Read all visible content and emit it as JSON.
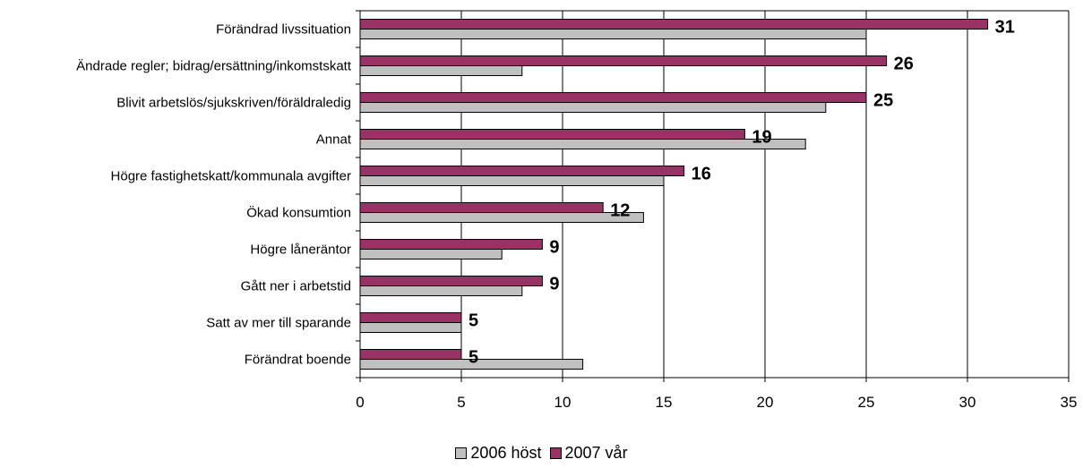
{
  "chart_data": {
    "type": "bar",
    "orientation": "horizontal",
    "categories": [
      "Förändrad livssituation",
      "Ändrade regler; bidrag/ersättning/inkomstskatt",
      "Blivit arbetslös/sjukskriven/föräldraledig",
      "Annat",
      "Högre fastighetskatt/kommunala avgifter",
      "Ökad konsumtion",
      "Högre låneräntor",
      "Gått ner i arbetstid",
      "Satt av mer till sparande",
      "Förändrat boende"
    ],
    "series": [
      {
        "name": "2007 vår",
        "color": "#993366",
        "values": [
          31,
          26,
          25,
          19,
          16,
          12,
          9,
          9,
          5,
          5
        ],
        "data_labels": [
          "31",
          "26",
          "25",
          "19",
          "16",
          "12",
          "9",
          "9",
          "5",
          "5"
        ]
      },
      {
        "name": "2006 höst",
        "color": "#c0c0c0",
        "values": [
          25,
          8,
          23,
          22,
          15,
          14,
          7,
          8,
          5,
          11
        ]
      }
    ],
    "xlim": [
      0,
      35
    ],
    "xticks": [
      "0",
      "5",
      "10",
      "15",
      "20",
      "25",
      "30",
      "35"
    ],
    "grid": true,
    "legend_position": "bottom-center",
    "legend": [
      {
        "label": "2006 höst",
        "color": "#c0c0c0"
      },
      {
        "label": "2007 vår",
        "color": "#993366"
      }
    ]
  }
}
